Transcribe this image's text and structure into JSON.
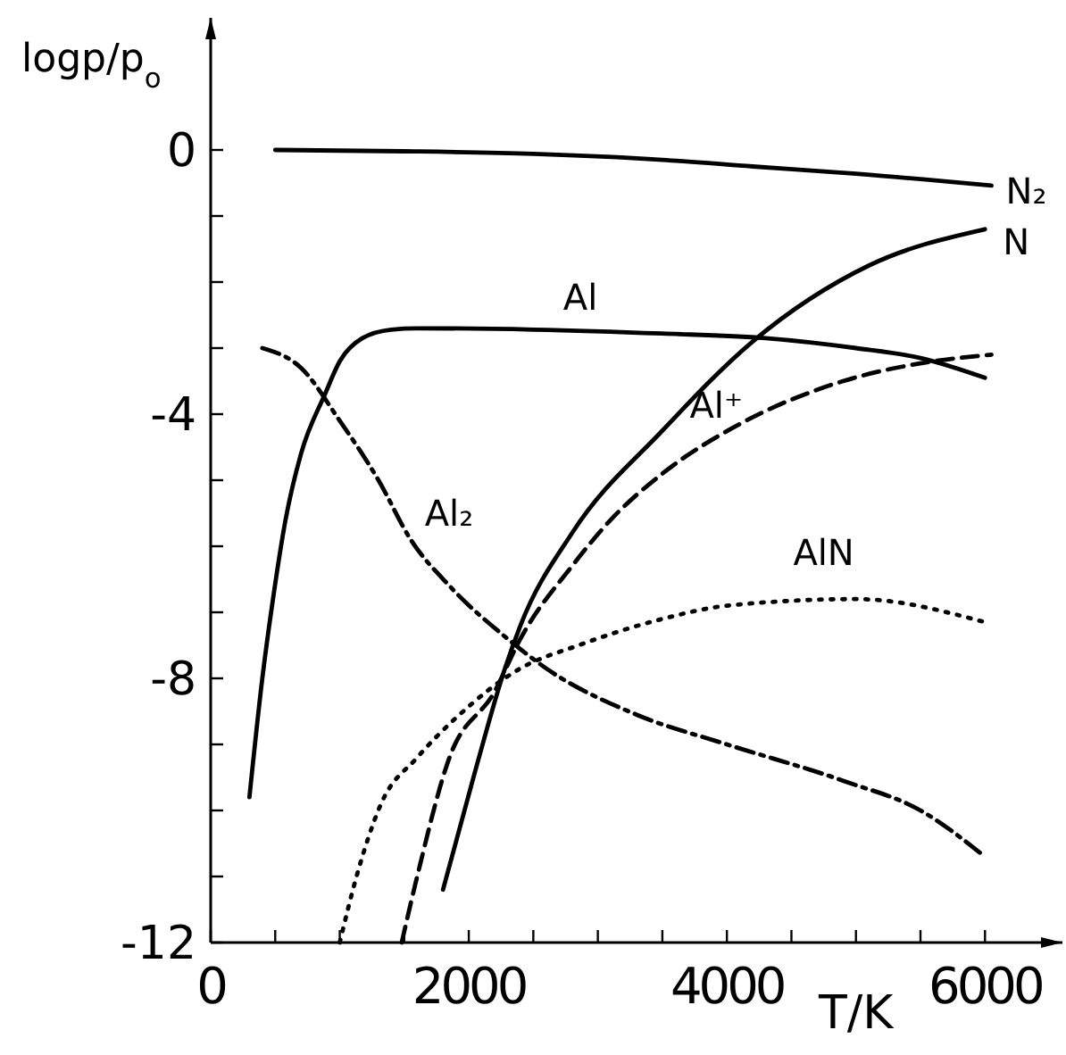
{
  "chart_data": {
    "type": "line",
    "xlabel": "T/K",
    "ylabel": "logp/p$_{o}$",
    "xlim": [
      0,
      6600
    ],
    "ylim": [
      -12,
      2
    ],
    "xticks": [
      0,
      {
        "value": 500,
        "label": null
      },
      {
        "value": 1000,
        "label": null
      },
      {
        "value": 1500,
        "label": null
      },
      2000,
      {
        "value": 2500,
        "label": null
      },
      {
        "value": 3000,
        "label": null
      },
      {
        "value": 3500,
        "label": null
      },
      4000,
      {
        "value": 4500,
        "label": null
      },
      {
        "value": 5000,
        "label": null
      },
      {
        "value": 5500,
        "label": null
      },
      6000
    ],
    "yticks": [
      {
        "value": -12,
        "label": "-12"
      },
      {
        "value": -11,
        "label": null
      },
      {
        "value": -10,
        "label": null
      },
      {
        "value": -9,
        "label": null
      },
      {
        "value": -8,
        "label": "-8"
      },
      {
        "value": -7,
        "label": null
      },
      {
        "value": -6,
        "label": null
      },
      {
        "value": -5,
        "label": null
      },
      {
        "value": -4,
        "label": "-4"
      },
      {
        "value": -3,
        "label": null
      },
      {
        "value": -2,
        "label": null
      },
      {
        "value": -1,
        "label": null
      },
      0
    ],
    "grid": false,
    "legend": false,
    "marker": "none",
    "series": [
      {
        "name": "N₂",
        "color": "#000000",
        "line_style": "solid",
        "x": [
          500,
          1500,
          2500,
          3500,
          4200,
          5000,
          6050
        ],
        "values": [
          0,
          -0.02,
          -0.06,
          -0.15,
          -0.25,
          -0.36,
          -0.54
        ]
      },
      {
        "name": "N",
        "color": "#000000",
        "line_style": "solid",
        "x": [
          1800,
          2050,
          2280,
          2400,
          2800,
          3500,
          4200,
          5100,
          6000
        ],
        "values": [
          -11.2,
          -9.4,
          -7.85,
          -7.2,
          -5.8,
          -4.25,
          -2.9,
          -1.75,
          -1.2
        ]
      },
      {
        "name": "Al",
        "color": "#000000",
        "line_style": "solid",
        "x": [
          300,
          400,
          490,
          580,
          700,
          885,
          1000,
          1175,
          1400,
          1600,
          2500,
          3500,
          4300,
          5000,
          5500,
          6000
        ],
        "values": [
          -9.8,
          -8.0,
          -6.7,
          -5.6,
          -4.6,
          -3.7,
          -3.2,
          -2.85,
          -2.72,
          -2.7,
          -2.72,
          -2.78,
          -2.85,
          -3.0,
          -3.15,
          -3.45
        ]
      },
      {
        "name": "Al⁺",
        "color": "#000000",
        "line_style": "dashed",
        "x": [
          1480,
          1600,
          1850,
          2200,
          2400,
          2800,
          3100,
          3500,
          4100,
          4900,
          5600,
          6050
        ],
        "values": [
          -12,
          -11,
          -9.2,
          -8.2,
          -7.4,
          -6.3,
          -5.6,
          -4.9,
          -4.15,
          -3.5,
          -3.2,
          -3.1
        ]
      },
      {
        "name": "Al₂",
        "color": "#000000",
        "line_style": "dashdot",
        "x": [
          400,
          700,
          1000,
          1300,
          1550,
          1850,
          2300,
          2600,
          3300,
          4000,
          4900,
          5500,
          6000
        ],
        "values": [
          -3.0,
          -3.3,
          -4.1,
          -5.0,
          -5.9,
          -6.6,
          -7.4,
          -7.85,
          -8.55,
          -9.0,
          -9.55,
          -10.0,
          -10.7
        ]
      },
      {
        "name": "AlN",
        "color": "#000000",
        "line_style": "dotted",
        "x": [
          1000,
          1130,
          1320,
          1600,
          1900,
          2400,
          2850,
          3500,
          4000,
          5000,
          6000
        ],
        "values": [
          -12,
          -11,
          -9.9,
          -9.2,
          -8.6,
          -7.85,
          -7.5,
          -7.1,
          -6.9,
          -6.8,
          -7.15
        ]
      }
    ]
  }
}
